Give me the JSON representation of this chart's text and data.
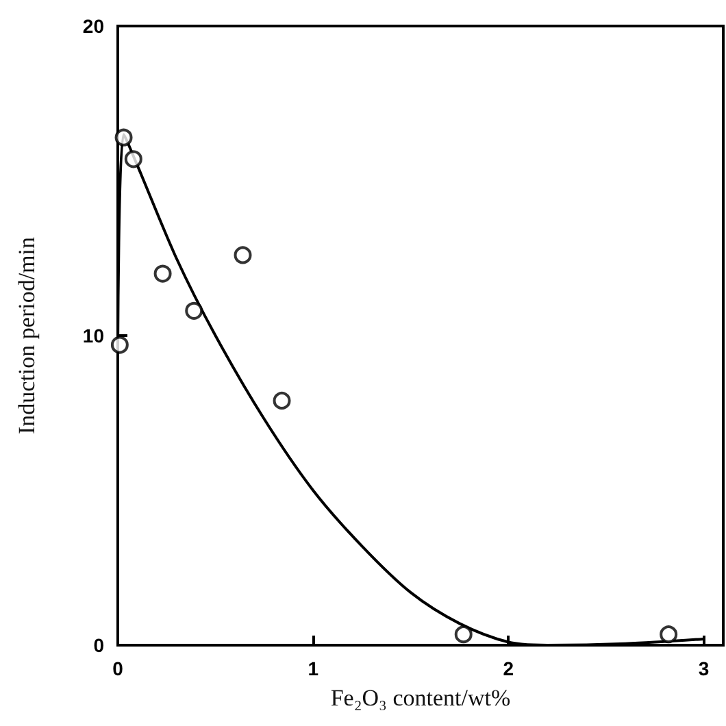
{
  "chart_data": {
    "type": "scatter",
    "xlabel": "Fe₂O₃ content/wt%",
    "ylabel": "Induction period/min",
    "xlim": [
      0,
      3.1
    ],
    "ylim": [
      0,
      20
    ],
    "xticks": [
      0,
      1,
      2,
      3
    ],
    "yticks": [
      0,
      10,
      20
    ],
    "grid": false,
    "marker": "circle",
    "series": [
      {
        "color": "#000000",
        "x": [
          0.01,
          0.03,
          0.08,
          0.23,
          0.39,
          0.64,
          0.84,
          1.77,
          2.82
        ],
        "values": [
          9.7,
          16.4,
          15.7,
          12.0,
          10.8,
          12.6,
          7.9,
          0.35,
          0.35
        ]
      },
      {
        "type": "line",
        "marker": "none",
        "color": "#000000",
        "x": [
          0,
          0.03,
          0.1,
          0.3,
          0.5,
          0.75,
          1,
          1.25,
          1.5,
          1.75,
          2,
          2.2,
          2.6,
          3
        ],
        "values": [
          9.5,
          16.5,
          15.5,
          12.5,
          10,
          7.3,
          5,
          3.2,
          1.7,
          0.7,
          0.1,
          0,
          0.05,
          0.2
        ]
      }
    ]
  }
}
